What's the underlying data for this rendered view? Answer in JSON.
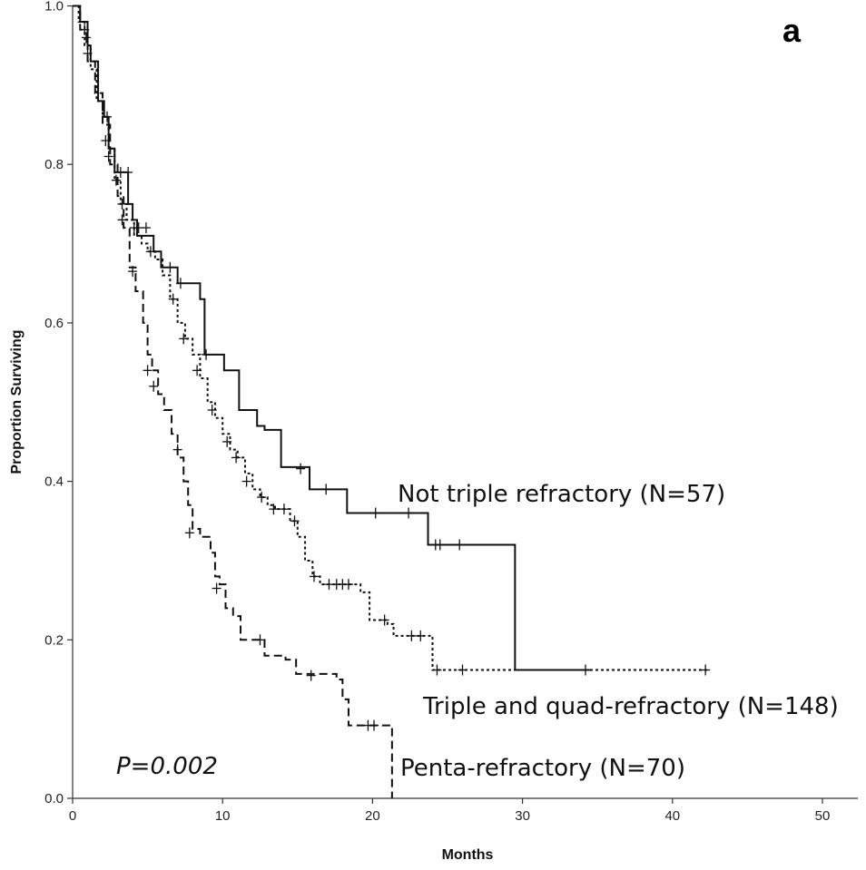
{
  "chart_data": {
    "type": "line",
    "subtype": "kaplan-meier step",
    "panel_label": "a",
    "xlabel": "Months",
    "ylabel": "Proportion Surviving",
    "xlim": [
      0,
      52
    ],
    "ylim": [
      0,
      1
    ],
    "x_ticks": [
      "0",
      "10",
      "20",
      "30",
      "40",
      "50"
    ],
    "y_ticks": [
      "0.0",
      "0.2",
      "0.4",
      "0.6",
      "0.8",
      "1.0"
    ],
    "p_value": "P=0.002",
    "grid": false,
    "series": [
      {
        "name": "Not triple refractory (N=57)",
        "line_style": "solid",
        "steps": [
          [
            0,
            1.0
          ],
          [
            0.5,
            0.98
          ],
          [
            1,
            0.95
          ],
          [
            1.2,
            0.93
          ],
          [
            1.7,
            0.88
          ],
          [
            2.1,
            0.86
          ],
          [
            2.4,
            0.82
          ],
          [
            2.8,
            0.79
          ],
          [
            3.5,
            0.79
          ],
          [
            3.7,
            0.75
          ],
          [
            4,
            0.73
          ],
          [
            4.3,
            0.71
          ],
          [
            5.4,
            0.69
          ],
          [
            5.9,
            0.67
          ],
          [
            7,
            0.65
          ],
          [
            8.5,
            0.63
          ],
          [
            8.8,
            0.56
          ],
          [
            10.1,
            0.54
          ],
          [
            11.1,
            0.49
          ],
          [
            12.3,
            0.47
          ],
          [
            12.8,
            0.465
          ],
          [
            13.9,
            0.418
          ],
          [
            15.8,
            0.39
          ],
          [
            18.3,
            0.36
          ],
          [
            23.7,
            0.32
          ],
          [
            29.5,
            0.162
          ],
          [
            34.5,
            0.162
          ]
        ],
        "censor_points": [
          [
            0.8,
            0.97
          ],
          [
            2.3,
            0.86
          ],
          [
            3.2,
            0.79
          ],
          [
            3.7,
            0.79
          ],
          [
            4.1,
            0.72
          ],
          [
            4.9,
            0.72
          ],
          [
            6.5,
            0.67
          ],
          [
            7.2,
            0.65
          ],
          [
            8.9,
            0.56
          ],
          [
            15.2,
            0.416
          ],
          [
            16.9,
            0.39
          ],
          [
            20.2,
            0.36
          ],
          [
            22.4,
            0.36
          ],
          [
            24.2,
            0.32
          ],
          [
            24.5,
            0.32
          ],
          [
            25.8,
            0.32
          ],
          [
            34.2,
            0.162
          ]
        ]
      },
      {
        "name": "Triple and quad-refractory (N=148)",
        "line_style": "dotted",
        "steps": [
          [
            0,
            1.0
          ],
          [
            0.4,
            0.98
          ],
          [
            0.8,
            0.95
          ],
          [
            1.2,
            0.92
          ],
          [
            1.6,
            0.88
          ],
          [
            2,
            0.86
          ],
          [
            2.4,
            0.82
          ],
          [
            2.8,
            0.78
          ],
          [
            3.2,
            0.75
          ],
          [
            3.6,
            0.73
          ],
          [
            4.1,
            0.71
          ],
          [
            4.6,
            0.7
          ],
          [
            5,
            0.69
          ],
          [
            5.5,
            0.68
          ],
          [
            6,
            0.66
          ],
          [
            6.5,
            0.63
          ],
          [
            7,
            0.6
          ],
          [
            7.5,
            0.58
          ],
          [
            8,
            0.56
          ],
          [
            8.5,
            0.53
          ],
          [
            9,
            0.5
          ],
          [
            9.5,
            0.48
          ],
          [
            10,
            0.46
          ],
          [
            10.5,
            0.44
          ],
          [
            11,
            0.43
          ],
          [
            11.5,
            0.41
          ],
          [
            12,
            0.39
          ],
          [
            12.5,
            0.38
          ],
          [
            13,
            0.37
          ],
          [
            13.5,
            0.365
          ],
          [
            14.5,
            0.35
          ],
          [
            15,
            0.33
          ],
          [
            15.5,
            0.3
          ],
          [
            16,
            0.28
          ],
          [
            16.5,
            0.27
          ],
          [
            19.2,
            0.26
          ],
          [
            19.8,
            0.225
          ],
          [
            21,
            0.22
          ],
          [
            21.4,
            0.205
          ],
          [
            23.5,
            0.205
          ],
          [
            24,
            0.162
          ],
          [
            42.5,
            0.162
          ]
        ],
        "censor_points": [
          [
            1,
            0.94
          ],
          [
            2.2,
            0.83
          ],
          [
            2.9,
            0.78
          ],
          [
            3.3,
            0.75
          ],
          [
            4.4,
            0.72
          ],
          [
            5.2,
            0.69
          ],
          [
            6.7,
            0.63
          ],
          [
            7.4,
            0.58
          ],
          [
            8.3,
            0.54
          ],
          [
            9.3,
            0.49
          ],
          [
            10.3,
            0.45
          ],
          [
            10.9,
            0.43
          ],
          [
            11.6,
            0.4
          ],
          [
            12.6,
            0.38
          ],
          [
            13.4,
            0.365
          ],
          [
            14.1,
            0.365
          ],
          [
            14.8,
            0.35
          ],
          [
            16.1,
            0.28
          ],
          [
            17.1,
            0.27
          ],
          [
            17.6,
            0.27
          ],
          [
            18,
            0.27
          ],
          [
            18.4,
            0.27
          ],
          [
            20.8,
            0.225
          ],
          [
            22.6,
            0.205
          ],
          [
            23.2,
            0.205
          ],
          [
            24.3,
            0.162
          ],
          [
            26,
            0.162
          ],
          [
            42.2,
            0.162
          ]
        ]
      },
      {
        "name": "Penta-refractory (N=70)",
        "line_style": "dashed",
        "steps": [
          [
            0,
            1.0
          ],
          [
            0.5,
            0.97
          ],
          [
            1,
            0.93
          ],
          [
            1.5,
            0.89
          ],
          [
            2,
            0.85
          ],
          [
            2.5,
            0.8
          ],
          [
            3,
            0.76
          ],
          [
            3.4,
            0.72
          ],
          [
            3.8,
            0.67
          ],
          [
            4.2,
            0.64
          ],
          [
            4.7,
            0.6
          ],
          [
            5,
            0.56
          ],
          [
            5.3,
            0.54
          ],
          [
            5.7,
            0.51
          ],
          [
            6.1,
            0.49
          ],
          [
            6.6,
            0.46
          ],
          [
            7,
            0.43
          ],
          [
            7.4,
            0.4
          ],
          [
            7.7,
            0.37
          ],
          [
            8,
            0.34
          ],
          [
            8.5,
            0.33
          ],
          [
            9.2,
            0.31
          ],
          [
            9.5,
            0.28
          ],
          [
            9.8,
            0.27
          ],
          [
            10.2,
            0.24
          ],
          [
            10.7,
            0.23
          ],
          [
            11.2,
            0.2
          ],
          [
            12.2,
            0.2
          ],
          [
            12.8,
            0.18
          ],
          [
            14.2,
            0.175
          ],
          [
            14.9,
            0.157
          ],
          [
            17.6,
            0.15
          ],
          [
            18,
            0.125
          ],
          [
            18.4,
            0.092
          ],
          [
            21.3,
            0.092
          ],
          [
            21.3,
            0
          ]
        ],
        "censor_points": [
          [
            0.9,
            0.96
          ],
          [
            2.4,
            0.81
          ],
          [
            3.3,
            0.73
          ],
          [
            4,
            0.665
          ],
          [
            5,
            0.54
          ],
          [
            5.4,
            0.52
          ],
          [
            7,
            0.44
          ],
          [
            7.8,
            0.335
          ],
          [
            9.6,
            0.265
          ],
          [
            12.5,
            0.2
          ],
          [
            15.9,
            0.155
          ],
          [
            19.7,
            0.092
          ],
          [
            20.1,
            0.092
          ]
        ]
      }
    ],
    "annotations": [
      {
        "text": "Not triple refractory (N=57)"
      },
      {
        "text": "Triple and quad-refractory (N=148)"
      },
      {
        "text": "Penta-refractory (N=70)"
      }
    ]
  }
}
